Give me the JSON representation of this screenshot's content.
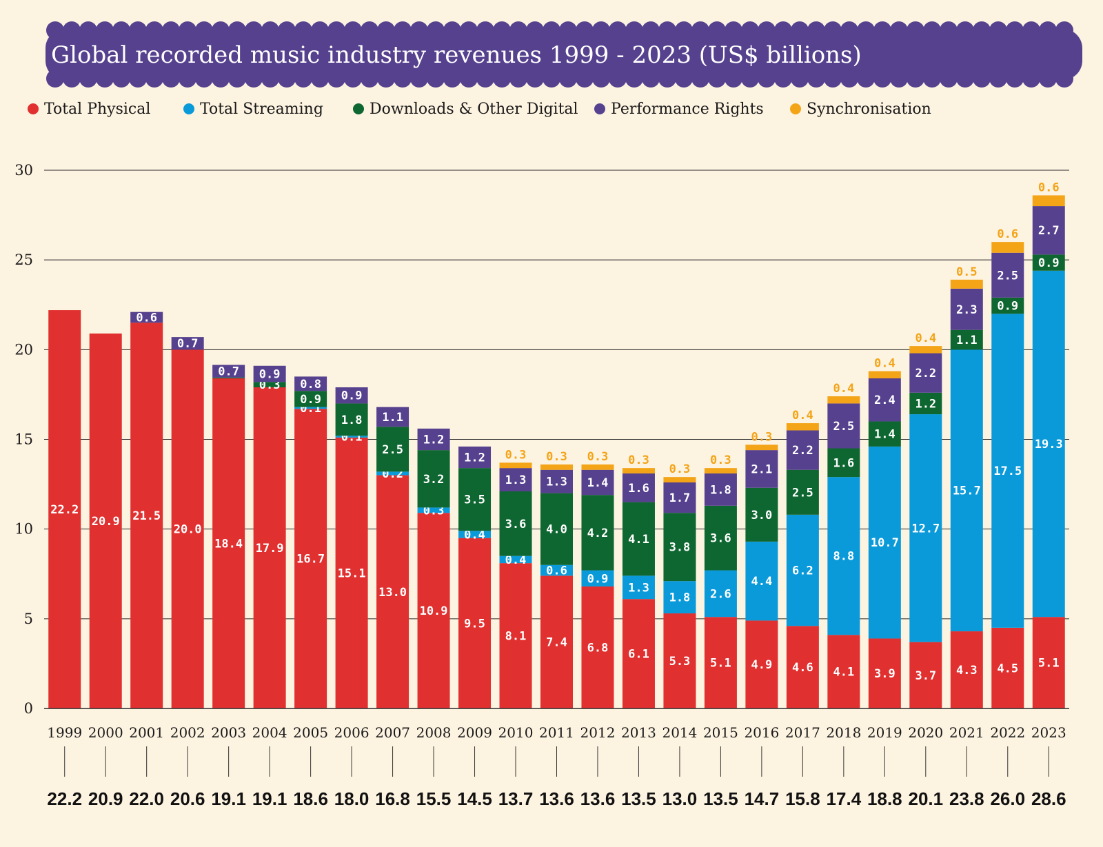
{
  "chart_data": {
    "type": "bar",
    "stacked": true,
    "title": "Global recorded music industry revenues 1999 - 2023 (US$ billions)",
    "ylim": [
      0,
      30
    ],
    "yticks": [
      0,
      5,
      10,
      15,
      20,
      25,
      30
    ],
    "grid": true,
    "legend_position": "top-left",
    "categories": [
      "1999",
      "2000",
      "2001",
      "2002",
      "2003",
      "2004",
      "2005",
      "2006",
      "2007",
      "2008",
      "2009",
      "2010",
      "2011",
      "2012",
      "2013",
      "2014",
      "2015",
      "2016",
      "2017",
      "2018",
      "2019",
      "2020",
      "2021",
      "2022",
      "2023"
    ],
    "series": [
      {
        "name": "Total Physical",
        "color": "#e03030",
        "values": [
          22.2,
          20.9,
          21.5,
          20.0,
          18.4,
          17.9,
          16.7,
          15.1,
          13.0,
          10.9,
          9.5,
          8.1,
          7.4,
          6.8,
          6.1,
          5.3,
          5.1,
          4.9,
          4.6,
          4.1,
          3.9,
          3.7,
          4.3,
          4.5,
          5.1
        ],
        "labels": [
          "22.2",
          "20.9",
          "21.5",
          "20.0",
          "18.4",
          "17.9",
          "16.7",
          "15.1",
          "13.0",
          "10.9",
          "9.5",
          "8.1",
          "7.4",
          "6.8",
          "6.1",
          "5.3",
          "5.1",
          "4.9",
          "4.6",
          "4.1",
          "3.9",
          "3.7",
          "4.3",
          "4.5",
          "5.1"
        ]
      },
      {
        "name": "Total Streaming",
        "color": "#0a9ada",
        "values": [
          0,
          0,
          0,
          0,
          0,
          0,
          0.1,
          0.1,
          0.2,
          0.3,
          0.4,
          0.4,
          0.6,
          0.9,
          1.3,
          1.8,
          2.6,
          4.4,
          6.2,
          8.8,
          10.7,
          12.7,
          15.7,
          17.5,
          19.3
        ],
        "labels": [
          "",
          "",
          "",
          "",
          "",
          "",
          "0.1",
          "0.1",
          "0.2",
          "0.3",
          "0.4",
          "0.4",
          "0.6",
          "0.9",
          "1.3",
          "1.8",
          "2.6",
          "4.4",
          "6.2",
          "8.8",
          "10.7",
          "12.7",
          "15.7",
          "17.5",
          "19.3"
        ]
      },
      {
        "name": "Downloads & Other Digital",
        "color": "#0e6630",
        "values": [
          0,
          0,
          0,
          0,
          0.05,
          0.3,
          0.9,
          1.8,
          2.5,
          3.2,
          3.5,
          3.6,
          4.0,
          4.2,
          4.1,
          3.8,
          3.6,
          3.0,
          2.5,
          1.6,
          1.4,
          1.2,
          1.1,
          0.9,
          0.9
        ],
        "labels": [
          "",
          "",
          "",
          "",
          "",
          "0.3",
          "0.9",
          "1.8",
          "2.5",
          "3.2",
          "3.5",
          "3.6",
          "4.0",
          "4.2",
          "4.1",
          "3.8",
          "3.6",
          "3.0",
          "2.5",
          "1.6",
          "1.4",
          "1.2",
          "1.1",
          "0.9",
          "0.9"
        ]
      },
      {
        "name": "Performance Rights",
        "color": "#56418e",
        "values": [
          0,
          0,
          0.6,
          0.7,
          0.7,
          0.9,
          0.8,
          0.9,
          1.1,
          1.2,
          1.2,
          1.3,
          1.3,
          1.4,
          1.6,
          1.7,
          1.8,
          2.1,
          2.2,
          2.5,
          2.4,
          2.2,
          2.3,
          2.5,
          2.7
        ],
        "labels": [
          "",
          "",
          "0.6",
          "0.7",
          "0.7",
          "0.9",
          "0.8",
          "0.9",
          "1.1",
          "1.2",
          "1.2",
          "1.3",
          "1.3",
          "1.4",
          "1.6",
          "1.7",
          "1.8",
          "2.1",
          "2.2",
          "2.5",
          "2.4",
          "2.2",
          "2.3",
          "2.5",
          "2.7"
        ]
      },
      {
        "name": "Synchronisation",
        "color": "#f3a417",
        "values": [
          0,
          0,
          0,
          0,
          0,
          0,
          0,
          0,
          0,
          0,
          0,
          0.3,
          0.3,
          0.3,
          0.3,
          0.3,
          0.3,
          0.3,
          0.4,
          0.4,
          0.4,
          0.4,
          0.5,
          0.6,
          0.6
        ],
        "labels": [
          "",
          "",
          "",
          "",
          "",
          "",
          "",
          "",
          "",
          "",
          "",
          "0.3",
          "0.3",
          "0.3",
          "0.3",
          "0.3",
          "0.3",
          "0.3",
          "0.4",
          "0.4",
          "0.4",
          "0.4",
          "0.5",
          "0.6",
          "0.6"
        ]
      }
    ],
    "totals": [
      "22.2",
      "20.9",
      "22.0",
      "20.6",
      "19.1",
      "19.1",
      "18.6",
      "18.0",
      "16.8",
      "15.5",
      "14.5",
      "13.7",
      "13.6",
      "13.6",
      "13.5",
      "13.0",
      "13.5",
      "14.7",
      "15.8",
      "17.4",
      "18.8",
      "20.1",
      "23.8",
      "26.0",
      "28.6"
    ]
  }
}
